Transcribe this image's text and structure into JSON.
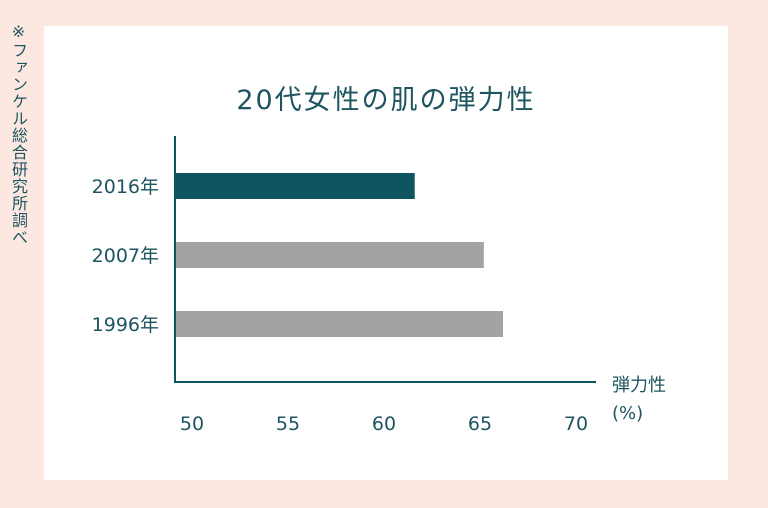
{
  "source_note": "※ファンケル総合研究所調べ",
  "chart_data": {
    "type": "bar",
    "orientation": "horizontal",
    "title": "20代女性の肌の弾力性",
    "xlabel": "弾力性",
    "xunit": "(%)",
    "ylabel": "",
    "categories": [
      "2016年",
      "2007年",
      "1996年"
    ],
    "values": [
      61.6,
      65.2,
      66.2
    ],
    "bar_colors": [
      "#0f5560",
      "#a3a3a3",
      "#a3a3a3"
    ],
    "xlim": [
      50,
      70
    ],
    "xticks": [
      50,
      55,
      60,
      65,
      70
    ],
    "grid": false,
    "legend": "none"
  }
}
